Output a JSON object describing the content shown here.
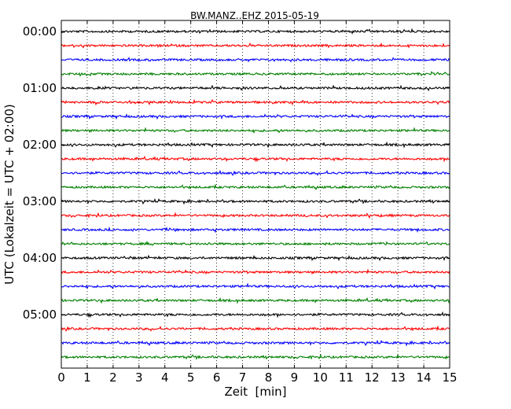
{
  "chart_data": {
    "type": "line",
    "title": "BW.MANZ..EHZ 2015-05-19",
    "xlabel": "Zeit  [min]",
    "ylabel": "UTC (Lokalzeit = UTC + 02:00)",
    "xlim": [
      0,
      15
    ],
    "x_ticks": [
      "0",
      "1",
      "2",
      "3",
      "4",
      "5",
      "6",
      "7",
      "8",
      "9",
      "10",
      "11",
      "12",
      "13",
      "14",
      "15"
    ],
    "y_ticks": [
      {
        "label": "00:00",
        "hour": 0
      },
      {
        "label": "01:00",
        "hour": 1
      },
      {
        "label": "02:00",
        "hour": 2
      },
      {
        "label": "03:00",
        "hour": 3
      },
      {
        "label": "04:00",
        "hour": 4
      },
      {
        "label": "05:00",
        "hour": 5
      }
    ],
    "traces_per_hour": 4,
    "trace_count": 24,
    "trace_colors": [
      "#000000",
      "#ff0000",
      "#0000ff",
      "#008000"
    ],
    "grid": "vertical-dotted"
  }
}
